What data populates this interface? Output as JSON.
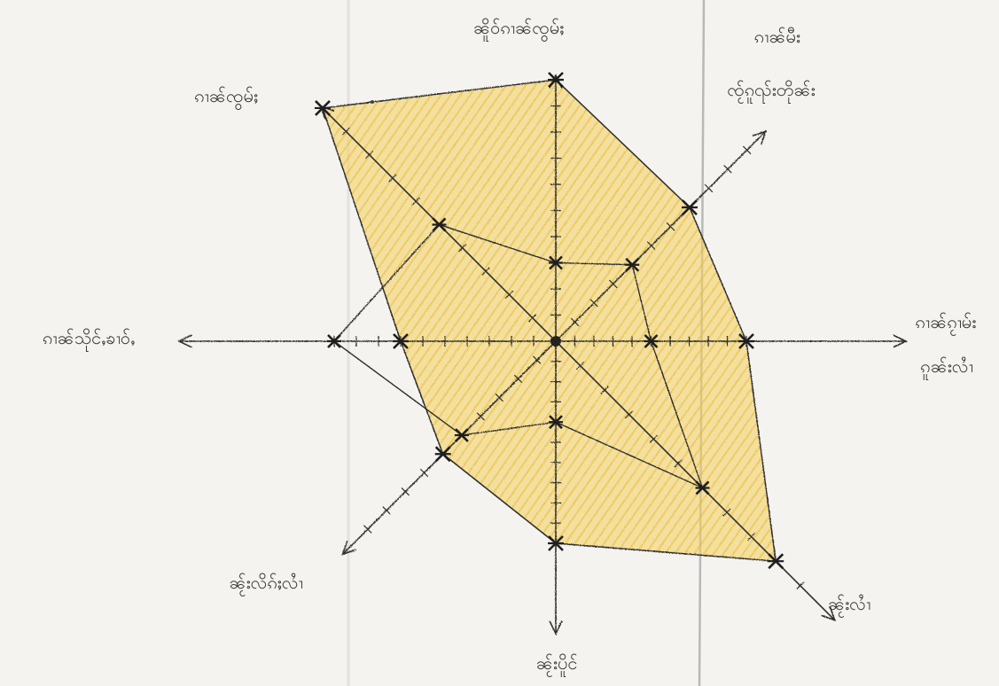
{
  "chart_data": {
    "type": "radar",
    "axis_labels": {
      "top": "ၼိူဝ်ၵၢၼ်ၸွမ်ႈ",
      "top_right": [
        "ၵၢၼ်မီး",
        "ၸႂ်ၵူၺ်းတိုၼ်း"
      ],
      "right": [
        "ၵၢၼ်ၵႂၢမ်း",
        "ၵူၼ်းလၢႆ"
      ],
      "bottom_right": "ၼႂ်းလၢႆ",
      "bottom": "ၼႂ်းပိူင်",
      "bottom_left": "ၼႂ်းလိၵ်ႈလၢႆ",
      "left": "ၵၢၼ်သိုင်ႇၶၢဝ်ႇ",
      "top_left": "ၵၢၼ်ၸွမ်ႈ"
    },
    "outer_polygon": [
      10,
      7,
      10,
      9,
      10,
      6,
      7,
      10
    ],
    "inner_polygon": [
      3,
      4,
      5,
      6,
      4,
      5,
      10,
      5
    ],
    "ticks_per_axis": 10
  },
  "colors": {
    "paper": "#f4f3ef",
    "fill": "#f0c848",
    "pencil": "#2e2e2e"
  }
}
